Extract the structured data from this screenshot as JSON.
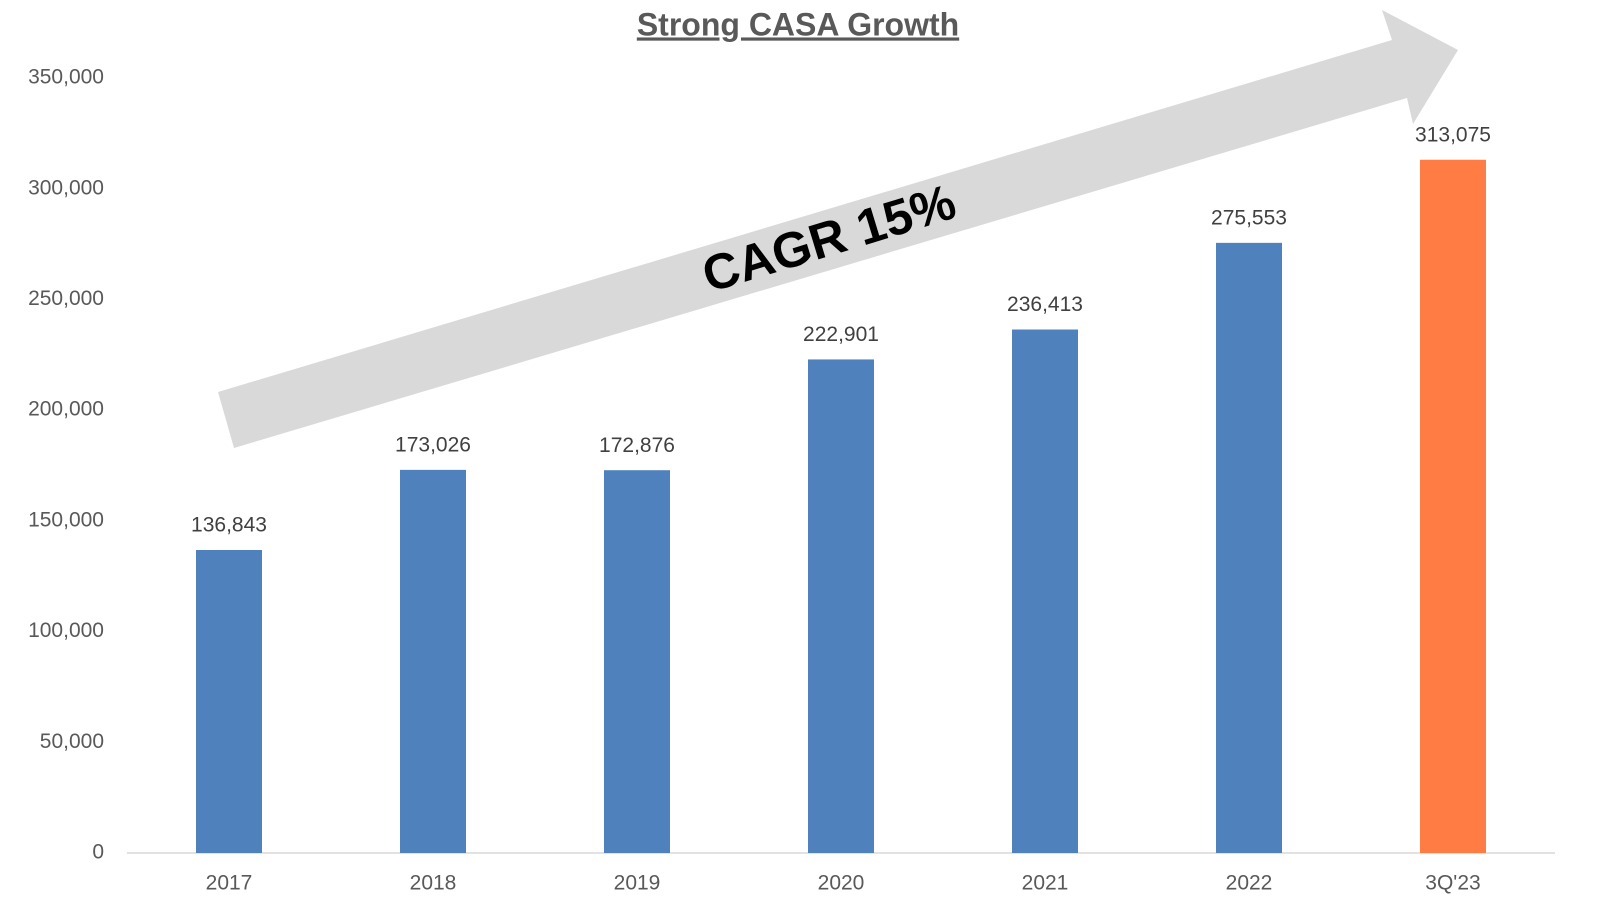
{
  "chart_data": {
    "type": "bar",
    "title": "Strong CASA Growth",
    "annotation": "CAGR 15%",
    "categories": [
      "2017",
      "2018",
      "2019",
      "2020",
      "2021",
      "2022",
      "3Q'23"
    ],
    "values": [
      136843,
      173026,
      172876,
      222901,
      236413,
      275553,
      313075
    ],
    "value_labels": [
      "136,843",
      "173,026",
      "172,876",
      "222,901",
      "236,413",
      "275,553",
      "313,075"
    ],
    "colors": [
      "#4f81bd",
      "#4f81bd",
      "#4f81bd",
      "#4f81bd",
      "#4f81bd",
      "#4f81bd",
      "#ff7c45"
    ],
    "ylim": [
      0,
      350000
    ],
    "yticks": [
      0,
      {
        "value": 50000,
        "label": "50,000"
      },
      {
        "value": 100000,
        "label": "100,000"
      },
      {
        "value": 150000,
        "label": "150,000"
      },
      {
        "value": 200000,
        "label": "200,000"
      },
      {
        "value": 250000,
        "label": "250,000"
      },
      {
        "value": 300000,
        "label": "300,000"
      },
      {
        "value": 350000,
        "label": "350,000"
      }
    ],
    "grid": false
  }
}
